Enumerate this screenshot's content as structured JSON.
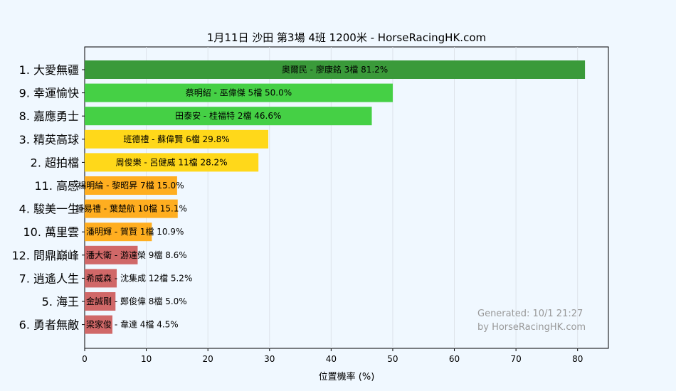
{
  "chart_data": {
    "type": "bar",
    "orientation": "horizontal",
    "title": "1月11日  沙田  第3場  4班  1200米 - HorseRacingHK.com",
    "xlabel": "位置機率 (%)",
    "xlim": [
      0,
      85
    ],
    "xticks": [
      0,
      10,
      20,
      30,
      40,
      50,
      60,
      70,
      80
    ],
    "grid": true,
    "categories": [
      "1. 大愛無疆",
      "9. 幸運愉快",
      "8. 嘉應勇士",
      "3. 精英高球",
      "2. 超拍檔",
      "11. 高感",
      "4. 駿美一生",
      "10. 萬里雲",
      "12. 問鼎巔峰",
      "7. 逍遙人生",
      "5. 海王",
      "6. 勇者無敵"
    ],
    "values": [
      81.2,
      50.0,
      46.6,
      29.8,
      28.2,
      15.0,
      15.1,
      10.9,
      8.6,
      5.2,
      5.0,
      4.5
    ],
    "bar_labels": [
      "奧爾民 - 廖康銘 3檔  81.2%",
      "蔡明紹 - 巫偉傑 5檔  50.0%",
      "田泰安 - 桂福特 2檔  46.6%",
      "班德禮 - 蘇偉賢 6檔  29.8%",
      "周俊樂 - 呂健威 11檔  28.2%",
      "楊明綸 - 黎昭昇 7檔  15.0%",
      "鍾易禮 - 葉楚航 10檔  15.1%",
      "潘明輝 - 賀賢 1檔  10.9%",
      "潘大衛 - 游達榮 9檔  8.6%",
      "希威森 - 沈集成 12檔  5.2%",
      "金誠剛 - 鄭俊偉 8檔  5.0%",
      "梁家俊 - 韋達 4檔  4.5%"
    ],
    "colors": [
      "#3a9a3a",
      "#45d045",
      "#45d045",
      "#ffd81a",
      "#ffd81a",
      "#ffae20",
      "#ffae20",
      "#ffae20",
      "#d06868",
      "#d06868",
      "#d06868",
      "#d06868"
    ],
    "watermark": [
      "Generated: 10/1 21:27",
      "by HorseRacingHK.com"
    ]
  }
}
